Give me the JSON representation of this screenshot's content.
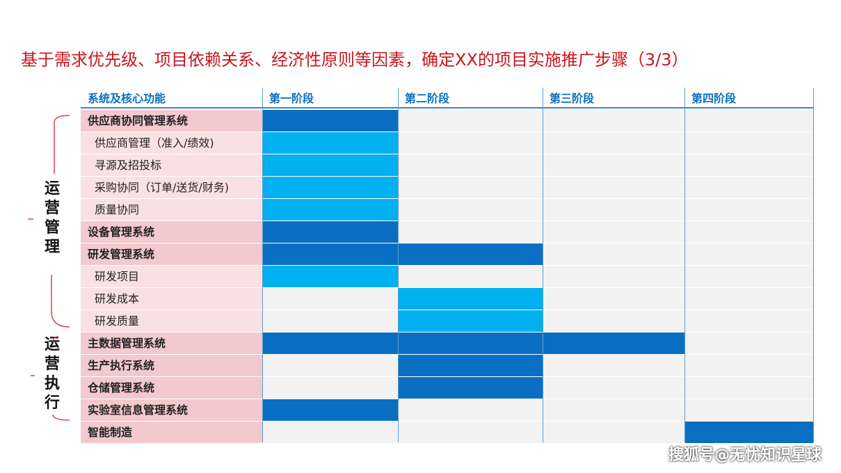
{
  "title": "基于需求优先级、项目依赖关系、经济性原则等因素，确定XX的项目实施推广步骤（3/3）",
  "watermark": "搜狐号@无忧知识星球",
  "side_groups": [
    {
      "label": "运\n营\n管\n理"
    },
    {
      "label": "运\n营\n执\n行"
    }
  ],
  "colors": {
    "title": "#c8161d",
    "header_text": "#0a70c0",
    "main_bar": "#0a6fc2",
    "sub_bar": "#00b0f0",
    "main_label_bg": "#f2c9cc",
    "sub_label_bg": "#f9e1e2",
    "empty_cell": "#f2f2f2",
    "bracket": "#e04050"
  },
  "chart_data": {
    "type": "table",
    "first_column_header": "系统及核心功能",
    "stages": [
      "第一阶段",
      "第二阶段",
      "第三阶段",
      "第四阶段"
    ],
    "rows": [
      {
        "label": "供应商协同管理系统",
        "level": "main",
        "start": 1,
        "end": 1
      },
      {
        "label": "供应商管理（准入/绩效)",
        "level": "sub",
        "start": 1,
        "end": 1
      },
      {
        "label": "寻源及招投标",
        "level": "sub",
        "start": 1,
        "end": 1
      },
      {
        "label": "采购协同（订单/送货/财务)",
        "level": "sub",
        "start": 1,
        "end": 1
      },
      {
        "label": "质量协同",
        "level": "sub",
        "start": 1,
        "end": 1
      },
      {
        "label": "设备管理系统",
        "level": "main",
        "start": 1,
        "end": 1
      },
      {
        "label": "研发管理系统",
        "level": "main",
        "start": 1,
        "end": 2
      },
      {
        "label": "研发项目",
        "level": "sub",
        "start": 1,
        "end": 1
      },
      {
        "label": "研发成本",
        "level": "sub",
        "start": 2,
        "end": 2
      },
      {
        "label": "研发质量",
        "level": "sub",
        "start": 2,
        "end": 2
      },
      {
        "label": "主数据管理系统",
        "level": "main",
        "start": 1,
        "end": 3
      },
      {
        "label": "生产执行系统",
        "level": "main",
        "start": 2,
        "end": 2
      },
      {
        "label": "仓储管理系统",
        "level": "main",
        "start": 2,
        "end": 2
      },
      {
        "label": "实验室信息管理系统",
        "level": "main",
        "start": 1,
        "end": 1
      },
      {
        "label": "智能制造",
        "level": "main",
        "start": 4,
        "end": 4
      }
    ]
  }
}
